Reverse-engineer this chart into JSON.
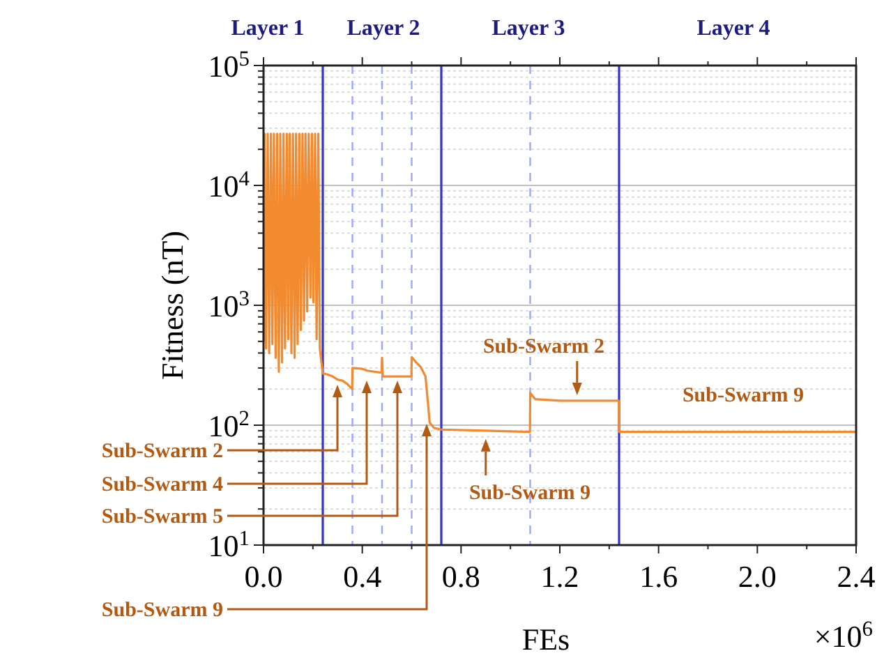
{
  "chart_data": {
    "type": "line",
    "xlabel": "FEs",
    "ylabel": "Fitness (nT)",
    "xlim": [
      0,
      2.4
    ],
    "ylim": [
      10,
      100000
    ],
    "log": "y",
    "grid": "y",
    "line_style": "solid",
    "marker": "none",
    "xticks": [
      {
        "value": 0,
        "label": "0.0"
      },
      {
        "value": 0.2,
        "label": null
      },
      {
        "value": 0.4,
        "label": "0.4"
      },
      {
        "value": 0.6,
        "label": null
      },
      {
        "value": 0.8,
        "label": "0.8"
      },
      {
        "value": 1.0,
        "label": null
      },
      {
        "value": 1.2,
        "label": "1.2"
      },
      {
        "value": 1.4,
        "label": null
      },
      {
        "value": 1.6,
        "label": "1.6"
      },
      {
        "value": 1.8,
        "label": null
      },
      {
        "value": 2.0,
        "label": "2.0"
      },
      {
        "value": 2.2,
        "label": null
      },
      {
        "value": 2.4,
        "label": "2.4"
      }
    ],
    "yticks": [
      {
        "value": 10,
        "label": "10$^{1}$"
      },
      {
        "value": 20,
        "label": null
      },
      {
        "value": 30,
        "label": null
      },
      {
        "value": 40,
        "label": null
      },
      {
        "value": 50,
        "label": null
      },
      {
        "value": 60,
        "label": null
      },
      {
        "value": 70,
        "label": null
      },
      {
        "value": 80,
        "label": null
      },
      {
        "value": 90,
        "label": null
      },
      {
        "value": 100,
        "label": "10$^{2}$"
      },
      {
        "value": 200,
        "label": null
      },
      {
        "value": 300,
        "label": null
      },
      {
        "value": 400,
        "label": null
      },
      {
        "value": 500,
        "label": null
      },
      {
        "value": 600,
        "label": null
      },
      {
        "value": 700,
        "label": null
      },
      {
        "value": 800,
        "label": null
      },
      {
        "value": 900,
        "label": null
      },
      {
        "value": 1000,
        "label": "10$^{3}$"
      },
      {
        "value": 2000,
        "label": null
      },
      {
        "value": 3000,
        "label": null
      },
      {
        "value": 4000,
        "label": null
      },
      {
        "value": 5000,
        "label": null
      },
      {
        "value": 6000,
        "label": null
      },
      {
        "value": 7000,
        "label": null
      },
      {
        "value": 8000,
        "label": null
      },
      {
        "value": 9000,
        "label": null
      },
      {
        "value": 10000,
        "label": "10$^{4}$"
      },
      {
        "value": 20000,
        "label": null
      },
      {
        "value": 30000,
        "label": null
      },
      {
        "value": 40000,
        "label": null
      },
      {
        "value": 50000,
        "label": null
      },
      {
        "value": 60000,
        "label": null
      },
      {
        "value": 70000,
        "label": null
      },
      {
        "value": 80000,
        "label": null
      },
      {
        "value": 90000,
        "label": null
      },
      {
        "value": 100000,
        "label": "10$^{5}$"
      }
    ],
    "series": [
      {
        "color": "#f28a30",
        "x": [
          0.001,
          0.004,
          0.01,
          0.017,
          0.023,
          0.03,
          0.036,
          0.042,
          0.049,
          0.055,
          0.062,
          0.068,
          0.075,
          0.081,
          0.087,
          0.094,
          0.1,
          0.106,
          0.113,
          0.119,
          0.126,
          0.132,
          0.138,
          0.145,
          0.151,
          0.158,
          0.164,
          0.17,
          0.177,
          0.183,
          0.19,
          0.196,
          0.202,
          0.209,
          0.215,
          0.222,
          0.228,
          0.24,
          0.26,
          0.28,
          0.3,
          0.32,
          0.34,
          0.359,
          0.36,
          0.4,
          0.42,
          0.47,
          0.478,
          0.48,
          0.483,
          0.599,
          0.6,
          0.615,
          0.637,
          0.656,
          0.665,
          0.673,
          0.69,
          0.72,
          0.9,
          1.079,
          1.08,
          1.1,
          1.2,
          1.439,
          1.44,
          2.4
        ],
        "values": [
          500,
          27000,
          437,
          27000,
          399,
          27000,
          476,
          27000,
          365,
          27000,
          279,
          27000,
          334,
          27000,
          437,
          27000,
          522,
          27000,
          399,
          27000,
          365,
          27000,
          476,
          27000,
          622,
          27000,
          745,
          27000,
          891,
          27000,
          1160,
          27000,
          1060,
          27000,
          522,
          27000,
          437,
          270,
          265,
          255,
          240,
          235,
          220,
          200,
          300,
          295,
          285,
          275,
          275,
          365,
          255,
          255,
          370,
          340,
          305,
          255,
          160,
          105,
          95,
          92,
          90,
          88,
          186,
          165,
          160,
          160,
          88,
          88
        ]
      }
    ],
    "ref_lines": [
      {
        "axis": "x",
        "value": 0.24,
        "color": "#3333cc",
        "line_style": "solid"
      },
      {
        "axis": "x",
        "value": 0.36,
        "color": "#99a8ff",
        "line_style": "dashed"
      },
      {
        "axis": "x",
        "value": 0.48,
        "color": "#99a8ff",
        "line_style": "dashed"
      },
      {
        "axis": "x",
        "value": 0.6,
        "color": "#99a8ff",
        "line_style": "dashed"
      },
      {
        "axis": "x",
        "value": 0.72,
        "color": "#3333cc",
        "line_style": "solid"
      },
      {
        "axis": "x",
        "value": 1.08,
        "color": "#99a8ff",
        "line_style": "dashed"
      },
      {
        "axis": "x",
        "value": 1.44,
        "color": "#3333cc",
        "line_style": "solid"
      }
    ],
    "annotations": [
      "Sub-Swarm 2",
      "Sub-Swarm 4",
      "Sub-Swarm 5",
      "Sub-Swarm 9",
      {
        "text": "Sub-Swarm 2",
        "x": 1.27,
        "y": 160
      },
      {
        "text": "Sub-Swarm 9",
        "x": 0.9,
        "y": 90
      },
      "Sub-Swarm 9",
      "Layer 1",
      "Layer 2",
      "Layer 3",
      "Layer 4",
      "×10$^{6}$"
    ]
  }
}
